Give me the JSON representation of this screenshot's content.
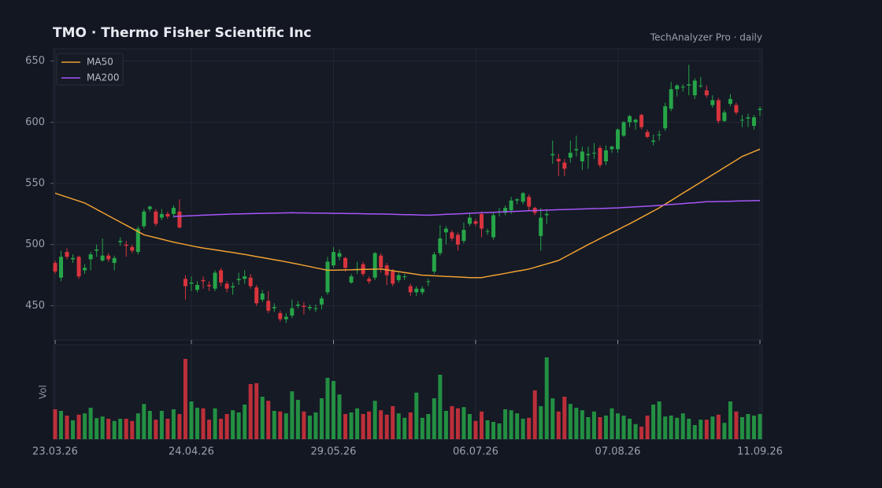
{
  "chart_data": {
    "type": "candlestick",
    "title": "TMO  ·  Thermo Fisher Scientific Inc",
    "subtitle": "TechAnalyzer Pro · daily",
    "volume_label": "Vol",
    "up_color": "#26a548",
    "down_color": "#d9343d",
    "ylim": [
      422,
      660
    ],
    "yticks": [
      450,
      500,
      550,
      600,
      650
    ],
    "vlim": [
      0,
      3
    ],
    "grid": true,
    "legend": "upper left",
    "categories": [
      "23.03.26",
      null,
      null,
      null,
      null,
      null,
      null,
      null,
      null,
      null,
      null,
      null,
      null,
      null,
      null,
      null,
      null,
      null,
      null,
      null,
      null,
      null,
      null,
      "24.04.26",
      null,
      null,
      null,
      null,
      null,
      null,
      null,
      null,
      null,
      null,
      null,
      null,
      null,
      null,
      null,
      null,
      null,
      null,
      null,
      null,
      null,
      null,
      null,
      "29.05.26",
      null,
      null,
      null,
      null,
      null,
      null,
      null,
      null,
      null,
      null,
      null,
      null,
      null,
      null,
      null,
      null,
      null,
      null,
      null,
      null,
      null,
      null,
      null,
      "06.07.26",
      null,
      null,
      null,
      null,
      null,
      null,
      null,
      null,
      null,
      null,
      null,
      null,
      null,
      null,
      null,
      null,
      null,
      null,
      null,
      null,
      null,
      null,
      null,
      "07.08.26",
      null,
      null,
      null,
      null,
      null,
      null,
      null,
      null,
      null,
      null,
      null,
      null,
      null,
      null,
      null,
      null,
      null,
      null,
      null,
      null,
      null,
      null,
      null,
      "11.09.26"
    ],
    "open": [
      485,
      473,
      494,
      488,
      490,
      479,
      488,
      495,
      487,
      491,
      485,
      502,
      500,
      498,
      494,
      515,
      529,
      527,
      522,
      525,
      525,
      527,
      472,
      468,
      463,
      471,
      467,
      464,
      479,
      468,
      465,
      471,
      472,
      473,
      465,
      455,
      454,
      448,
      444,
      439,
      442,
      450,
      450,
      448,
      448,
      451,
      461,
      483,
      490,
      489,
      469,
      479,
      484,
      472,
      473,
      491,
      483,
      478,
      471,
      474,
      466,
      461,
      461,
      470,
      478,
      493,
      510,
      510,
      508,
      503,
      517,
      519,
      525,
      511,
      506,
      527,
      526,
      528,
      536,
      535,
      539,
      530,
      507,
      524,
      573,
      570,
      567,
      571,
      577,
      568,
      573,
      575,
      579,
      568,
      578,
      578,
      589,
      600,
      600,
      606,
      592,
      584,
      590,
      595,
      611,
      627,
      629,
      630,
      622,
      630,
      626,
      614,
      618,
      601,
      615,
      614,
      602,
      603,
      597,
      610
    ],
    "high": [
      487,
      495,
      497,
      492,
      491,
      484,
      494,
      500,
      505,
      493,
      491,
      506,
      503,
      500,
      515,
      529,
      532,
      529,
      529,
      527,
      532,
      537,
      475,
      474,
      470,
      474,
      470,
      479,
      481,
      470,
      469,
      477,
      479,
      476,
      467,
      463,
      462,
      452,
      446,
      444,
      455,
      454,
      453,
      451,
      451,
      458,
      490,
      498,
      496,
      490,
      476,
      486,
      486,
      474,
      494,
      493,
      485,
      480,
      477,
      476,
      468,
      466,
      466,
      472,
      494,
      516,
      515,
      512,
      510,
      518,
      526,
      521,
      527,
      513,
      526,
      530,
      532,
      539,
      538,
      543,
      541,
      531,
      530,
      529,
      585,
      574,
      570,
      585,
      589,
      580,
      580,
      583,
      581,
      581,
      581,
      595,
      601,
      606,
      603,
      607,
      594,
      590,
      593,
      616,
      633,
      631,
      631,
      647,
      636,
      637,
      630,
      622,
      620,
      610,
      623,
      616,
      606,
      607,
      606,
      613
    ],
    "low": [
      476,
      470,
      488,
      485,
      472,
      476,
      479,
      490,
      486,
      486,
      479,
      499,
      490,
      493,
      492,
      513,
      527,
      515,
      520,
      521,
      522,
      513,
      455,
      462,
      461,
      464,
      462,
      462,
      466,
      461,
      459,
      467,
      468,
      464,
      450,
      453,
      444,
      445,
      437,
      436,
      440,
      448,
      443,
      446,
      445,
      447,
      459,
      481,
      487,
      478,
      468,
      476,
      474,
      468,
      471,
      477,
      467,
      466,
      469,
      471,
      458,
      458,
      459,
      466,
      476,
      491,
      500,
      503,
      495,
      501,
      515,
      515,
      506,
      508,
      504,
      523,
      524,
      525,
      533,
      533,
      528,
      524,
      495,
      517,
      566,
      556,
      556,
      567,
      572,
      561,
      562,
      570,
      563,
      565,
      575,
      575,
      588,
      596,
      594,
      594,
      587,
      581,
      585,
      593,
      609,
      621,
      625,
      622,
      619,
      628,
      620,
      612,
      599,
      600,
      613,
      606,
      596,
      596,
      594,
      605
    ],
    "close": [
      478,
      490,
      490,
      489,
      474,
      481,
      492,
      496,
      491,
      488,
      489,
      503,
      499,
      495,
      513,
      527,
      531,
      517,
      525,
      523,
      530,
      514,
      466,
      469,
      467,
      470,
      466,
      477,
      469,
      464,
      466,
      472,
      474,
      466,
      452,
      460,
      446,
      449,
      439,
      441,
      448,
      451,
      449,
      449,
      448,
      456,
      486,
      494,
      493,
      481,
      474,
      480,
      476,
      470,
      493,
      481,
      475,
      468,
      475,
      474,
      461,
      464,
      464,
      470,
      492,
      505,
      513,
      505,
      500,
      512,
      522,
      517,
      513,
      511,
      524,
      527,
      530,
      536,
      537,
      542,
      531,
      526,
      522,
      525,
      574,
      568,
      562,
      575,
      578,
      576,
      574,
      575,
      565,
      577,
      580,
      594,
      600,
      605,
      602,
      596,
      588,
      585,
      590,
      613,
      627,
      630,
      629,
      631,
      634,
      630,
      622,
      618,
      601,
      608,
      619,
      608,
      602,
      604,
      604,
      611
    ],
    "volume": [
      0.95,
      0.9,
      0.75,
      0.6,
      0.78,
      0.82,
      1.0,
      0.67,
      0.72,
      0.65,
      0.58,
      0.65,
      0.65,
      0.58,
      0.82,
      1.12,
      0.9,
      0.62,
      0.9,
      0.65,
      0.95,
      0.8,
      2.55,
      1.2,
      1.0,
      0.98,
      0.62,
      0.98,
      0.65,
      0.8,
      0.92,
      0.85,
      1.1,
      1.75,
      1.78,
      1.35,
      1.22,
      0.9,
      0.88,
      0.82,
      1.52,
      1.25,
      0.88,
      0.75,
      0.85,
      1.3,
      1.95,
      1.85,
      1.42,
      0.8,
      0.85,
      0.98,
      0.8,
      0.88,
      1.22,
      0.92,
      0.78,
      1.05,
      0.82,
      0.68,
      0.85,
      1.48,
      0.68,
      0.8,
      1.3,
      2.05,
      0.9,
      1.05,
      0.98,
      1.02,
      0.8,
      0.58,
      0.88,
      0.6,
      0.55,
      0.5,
      0.95,
      0.92,
      0.82,
      0.65,
      0.68,
      1.55,
      1.05,
      2.6,
      1.3,
      0.88,
      1.35,
      1.12,
      1.0,
      0.92,
      0.7,
      0.88,
      0.7,
      0.75,
      0.98,
      0.82,
      0.75,
      0.65,
      0.48,
      0.4,
      0.75,
      1.1,
      1.2,
      0.72,
      0.75,
      0.68,
      0.82,
      0.65,
      0.45,
      0.62,
      0.62,
      0.72,
      0.78,
      0.52,
      1.2,
      0.88,
      0.7,
      0.8,
      0.75,
      0.8
    ],
    "series": [
      {
        "name": "MA50",
        "color": "#f0a030",
        "values": [
          542,
          540.4,
          538.8,
          537.2,
          535.6,
          534,
          531.4,
          528.8,
          526.2,
          523.6,
          521,
          518.4,
          515.8,
          513.2,
          510.6,
          508,
          506.8,
          505.6,
          504.4,
          503.2,
          502,
          501,
          500,
          499,
          498,
          497.2,
          496.5,
          495.7,
          495,
          494.2,
          493.5,
          492.7,
          492,
          491.1,
          490.2,
          489.4,
          488.5,
          487.6,
          486.8,
          485.9,
          485,
          484,
          483,
          482,
          481,
          480,
          479,
          479.1,
          479.2,
          479.3,
          479.4,
          479.6,
          479.7,
          479.8,
          479.9,
          480,
          479.3,
          478.6,
          477.9,
          477.1,
          476.4,
          475.7,
          475,
          474.8,
          474.5,
          474.3,
          474,
          473.8,
          473.5,
          473.3,
          473,
          473,
          473,
          473.9,
          474.8,
          475.6,
          476.5,
          477.4,
          478.3,
          479.1,
          480,
          481.4,
          482.8,
          484.2,
          485.6,
          487,
          489.6,
          492.2,
          494.8,
          497.4,
          500,
          502.4,
          504.9,
          507.3,
          509.7,
          512.1,
          514.6,
          517,
          519.6,
          522.2,
          524.8,
          527.4,
          530,
          533,
          536,
          539,
          542,
          545,
          548,
          551,
          554,
          557,
          560,
          563,
          566,
          569,
          572,
          574,
          576,
          578
        ]
      },
      {
        "name": "MA200",
        "color": "#a855f7",
        "values": [
          null,
          null,
          null,
          null,
          null,
          null,
          null,
          null,
          null,
          null,
          null,
          null,
          null,
          null,
          null,
          null,
          null,
          null,
          null,
          null,
          523,
          523.2,
          523.4,
          523.6,
          523.8,
          524,
          524.2,
          524.4,
          524.6,
          524.8,
          525,
          525.1,
          525.2,
          525.3,
          525.4,
          525.5,
          525.6,
          525.7,
          525.8,
          525.9,
          526,
          525.9,
          525.9,
          525.8,
          525.7,
          525.7,
          525.6,
          525.5,
          525.5,
          525.4,
          525.3,
          525.3,
          525.2,
          525.1,
          525.1,
          525,
          524.9,
          524.8,
          524.6,
          524.5,
          524.4,
          524.3,
          524.1,
          524,
          524.2,
          524.4,
          524.7,
          524.9,
          525.1,
          525.3,
          525.6,
          525.8,
          526,
          526.2,
          526.4,
          526.6,
          526.8,
          527,
          527.2,
          527.4,
          527.6,
          527.8,
          528,
          528.2,
          528.3,
          528.5,
          528.6,
          528.8,
          528.9,
          529.1,
          529.2,
          529.4,
          529.5,
          529.7,
          529.8,
          530,
          530.3,
          530.6,
          530.9,
          531.1,
          531.4,
          531.7,
          532,
          532.4,
          532.8,
          533.1,
          533.5,
          533.9,
          534.2,
          534.6,
          535,
          535.1,
          535.2,
          535.3,
          535.4,
          535.6,
          535.7,
          535.8,
          535.9,
          536
        ]
      }
    ]
  }
}
